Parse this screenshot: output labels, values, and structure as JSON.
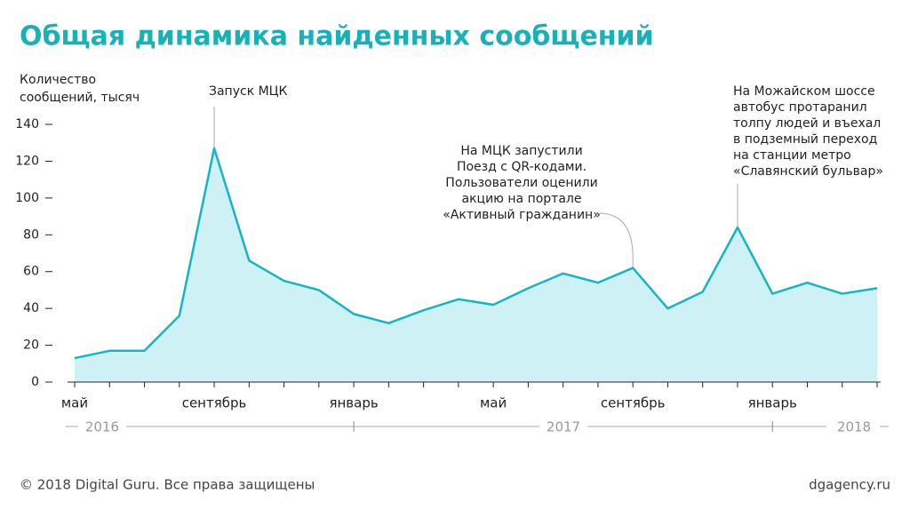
{
  "chart_data": {
    "type": "area",
    "title": "Общая динамика найденных сообщений",
    "y_label": [
      "Количество",
      "сообщений, тысяч"
    ],
    "categories": [
      "май",
      null,
      null,
      null,
      "сентябрь",
      null,
      null,
      null,
      "январь",
      null,
      null,
      null,
      "май",
      null,
      null,
      null,
      "сентябрь",
      null,
      null,
      null,
      "январь",
      null,
      null,
      null
    ],
    "years": [
      "2016",
      "2017",
      "2018"
    ],
    "values": [
      13,
      17,
      17,
      36,
      127,
      66,
      55,
      50,
      37,
      32,
      39,
      45,
      42,
      51,
      59,
      54,
      62,
      40,
      49,
      84,
      48,
      54,
      48,
      51
    ],
    "color": "#17b5c2",
    "fill": "#cdf1f4",
    "ylim": [
      0,
      140
    ],
    "yticks": [
      0,
      20,
      40,
      60,
      80,
      100,
      120,
      140
    ],
    "annotations": [
      {
        "lines": [
          "Запуск МЦК"
        ]
      },
      {
        "lines": [
          "На МЦК запустили",
          "Поезд с QR-кодами.",
          "Пользователи оценили",
          "акцию на портале",
          "«Активный гражданин»"
        ]
      },
      {
        "lines": [
          "На Можайском шоссе",
          "автобус протаранил",
          "толпу людей и въехал",
          "в подземный переход",
          "на станции метро",
          "«Славянский бульвар»"
        ]
      }
    ],
    "footer_left": "© 2018 Digital Guru. Все права защищены",
    "footer_right": "dgagency.ru"
  }
}
